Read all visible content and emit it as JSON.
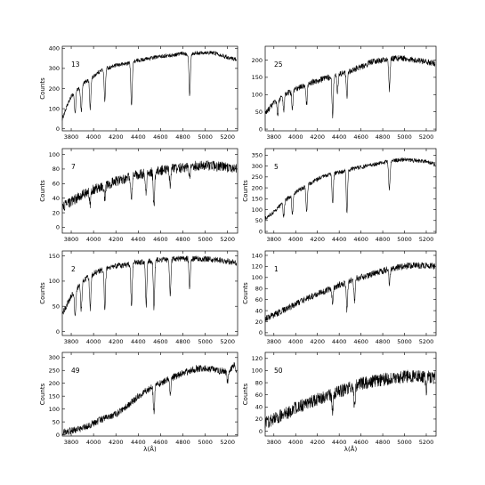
{
  "figure": {
    "colors": {
      "line": "#000000",
      "axes": "#000000",
      "background": "#ffffff"
    }
  },
  "chart_data": [
    {
      "type": "line",
      "panel_label": "13",
      "ylabel": "Counts",
      "xlabel": "",
      "xlim": [
        3720,
        5290
      ],
      "ylim": [
        -10,
        410
      ],
      "xticks": [
        3800,
        4000,
        4200,
        4400,
        4600,
        4800,
        5000,
        5200
      ],
      "yticks": [
        0,
        100,
        200,
        300,
        400
      ],
      "series": [
        {
          "x": [
            3720,
            3760,
            3800,
            3840,
            3880,
            3920,
            3970,
            4000,
            4040,
            4100,
            4150,
            4200,
            4300,
            4340,
            4400,
            4500,
            4600,
            4700,
            4800,
            4860,
            4900,
            5000,
            5100,
            5200,
            5280
          ],
          "y": [
            50,
            110,
            160,
            190,
            200,
            230,
            250,
            260,
            280,
            300,
            305,
            315,
            325,
            330,
            340,
            350,
            360,
            365,
            375,
            370,
            375,
            380,
            375,
            355,
            345
          ],
          "absorption": [
            {
              "x": 3835,
              "depth": 110
            },
            {
              "x": 3890,
              "depth": 120
            },
            {
              "x": 3970,
              "depth": 150
            },
            {
              "x": 4101,
              "depth": 160
            },
            {
              "x": 4340,
              "depth": 220
            },
            {
              "x": 4861,
              "depth": 200
            }
          ],
          "noise": 10
        }
      ]
    },
    {
      "type": "line",
      "panel_label": "25",
      "ylabel": "",
      "xlabel": "",
      "xlim": [
        3720,
        5290
      ],
      "ylim": [
        -5,
        240
      ],
      "xticks": [
        3800,
        4000,
        4200,
        4400,
        4600,
        4800,
        5000,
        5200
      ],
      "yticks": [
        0,
        50,
        100,
        150,
        200
      ],
      "series": [
        {
          "x": [
            3720,
            3800,
            3900,
            4000,
            4100,
            4200,
            4300,
            4400,
            4500,
            4600,
            4700,
            4800,
            4900,
            5000,
            5100,
            5200,
            5280
          ],
          "y": [
            45,
            75,
            100,
            115,
            130,
            140,
            150,
            158,
            168,
            180,
            195,
            200,
            205,
            205,
            200,
            195,
            190
          ],
          "absorption": [
            {
              "x": 3835,
              "depth": 40
            },
            {
              "x": 3890,
              "depth": 45
            },
            {
              "x": 3970,
              "depth": 50
            },
            {
              "x": 4101,
              "depth": 60
            },
            {
              "x": 4340,
              "depth": 115
            },
            {
              "x": 4384,
              "depth": 50
            },
            {
              "x": 4471,
              "depth": 70
            },
            {
              "x": 4861,
              "depth": 90
            }
          ],
          "noise": 9
        }
      ]
    },
    {
      "type": "line",
      "panel_label": "7",
      "ylabel": "Counts",
      "xlabel": "",
      "xlim": [
        3720,
        5290
      ],
      "ylim": [
        -8,
        108
      ],
      "xticks": [
        3800,
        4000,
        4200,
        4400,
        4600,
        4800,
        5000,
        5200
      ],
      "yticks": [
        0,
        20,
        40,
        60,
        80,
        100
      ],
      "series": [
        {
          "x": [
            3720,
            3800,
            3900,
            4000,
            4100,
            4200,
            4300,
            4400,
            4500,
            4600,
            4700,
            4800,
            4900,
            5000,
            5100,
            5200,
            5280
          ],
          "y": [
            28,
            35,
            45,
            52,
            58,
            63,
            68,
            72,
            75,
            78,
            80,
            82,
            84,
            85,
            84,
            82,
            80
          ],
          "absorption": [
            {
              "x": 3970,
              "depth": 20
            },
            {
              "x": 4101,
              "depth": 20
            },
            {
              "x": 4340,
              "depth": 28
            },
            {
              "x": 4471,
              "depth": 25
            },
            {
              "x": 4541,
              "depth": 50
            },
            {
              "x": 4686,
              "depth": 20
            },
            {
              "x": 4861,
              "depth": 18
            }
          ],
          "noise": 7
        }
      ]
    },
    {
      "type": "line",
      "panel_label": "5",
      "ylabel": "Counts",
      "xlabel": "",
      "xlim": [
        3720,
        5290
      ],
      "ylim": [
        -8,
        380
      ],
      "xticks": [
        3800,
        4000,
        4200,
        4400,
        4600,
        4800,
        5000,
        5200
      ],
      "yticks": [
        0,
        50,
        100,
        150,
        200,
        250,
        300,
        350
      ],
      "series": [
        {
          "x": [
            3720,
            3800,
            3900,
            4000,
            4100,
            4200,
            4300,
            4400,
            4500,
            4600,
            4700,
            4800,
            4900,
            5000,
            5100,
            5200,
            5280
          ],
          "y": [
            60,
            90,
            140,
            180,
            210,
            240,
            260,
            270,
            285,
            295,
            305,
            315,
            325,
            330,
            325,
            320,
            310
          ],
          "absorption": [
            {
              "x": 3890,
              "depth": 70
            },
            {
              "x": 3970,
              "depth": 90
            },
            {
              "x": 4101,
              "depth": 120
            },
            {
              "x": 4340,
              "depth": 140
            },
            {
              "x": 4471,
              "depth": 200
            },
            {
              "x": 4861,
              "depth": 130
            }
          ],
          "noise": 10
        }
      ]
    },
    {
      "type": "line",
      "panel_label": "2",
      "ylabel": "Counts",
      "xlabel": "",
      "xlim": [
        3720,
        5290
      ],
      "ylim": [
        -8,
        160
      ],
      "xticks": [
        3800,
        4000,
        4200,
        4400,
        4600,
        4800,
        5000,
        5200
      ],
      "yticks": [
        0,
        50,
        100,
        150
      ],
      "series": [
        {
          "x": [
            3720,
            3800,
            3900,
            4000,
            4100,
            4200,
            4300,
            4400,
            4500,
            4600,
            4700,
            4800,
            4900,
            5000,
            5100,
            5200,
            5280
          ],
          "y": [
            35,
            70,
            100,
            115,
            125,
            130,
            133,
            137,
            140,
            142,
            143,
            145,
            145,
            144,
            142,
            140,
            135
          ],
          "absorption": [
            {
              "x": 3835,
              "depth": 50
            },
            {
              "x": 3890,
              "depth": 55
            },
            {
              "x": 3970,
              "depth": 65
            },
            {
              "x": 4101,
              "depth": 80
            },
            {
              "x": 4340,
              "depth": 85
            },
            {
              "x": 4471,
              "depth": 90
            },
            {
              "x": 4541,
              "depth": 95
            },
            {
              "x": 4686,
              "depth": 70
            },
            {
              "x": 4861,
              "depth": 60
            }
          ],
          "noise": 6
        }
      ]
    },
    {
      "type": "line",
      "panel_label": "1",
      "ylabel": "Counts",
      "xlabel": "",
      "xlim": [
        3720,
        5290
      ],
      "ylim": [
        -5,
        148
      ],
      "xticks": [
        3800,
        4000,
        4200,
        4400,
        4600,
        4800,
        5000,
        5200
      ],
      "yticks": [
        0,
        20,
        40,
        60,
        80,
        100,
        120,
        140
      ],
      "series": [
        {
          "x": [
            3720,
            3800,
            3900,
            4000,
            4100,
            4200,
            4300,
            4400,
            4500,
            4600,
            4700,
            4800,
            4900,
            5000,
            5100,
            5200,
            5280
          ],
          "y": [
            25,
            32,
            42,
            52,
            62,
            70,
            78,
            86,
            94,
            100,
            106,
            112,
            117,
            120,
            122,
            122,
            120
          ],
          "absorption": [
            {
              "x": 4340,
              "depth": 30
            },
            {
              "x": 4471,
              "depth": 50
            },
            {
              "x": 4541,
              "depth": 40
            },
            {
              "x": 4861,
              "depth": 25
            }
          ],
          "noise": 6
        }
      ]
    },
    {
      "type": "line",
      "panel_label": "49",
      "ylabel": "Counts",
      "xlabel": "λ(Å)",
      "xlim": [
        3720,
        5290
      ],
      "ylim": [
        -5,
        320
      ],
      "xticks": [
        3800,
        4000,
        4200,
        4400,
        4600,
        4800,
        5000,
        5200
      ],
      "yticks": [
        0,
        50,
        100,
        150,
        200,
        250,
        300
      ],
      "series": [
        {
          "x": [
            3720,
            3800,
            3900,
            4000,
            4100,
            4200,
            4300,
            4400,
            4500,
            4600,
            4700,
            4800,
            4900,
            5000,
            5100,
            5200,
            5260,
            5280
          ],
          "y": [
            10,
            15,
            25,
            45,
            65,
            80,
            110,
            150,
            180,
            200,
            220,
            240,
            255,
            260,
            250,
            245,
            270,
            250
          ],
          "absorption": [
            {
              "x": 4541,
              "depth": 100
            },
            {
              "x": 4686,
              "depth": 60
            },
            {
              "x": 5200,
              "depth": 40
            }
          ],
          "noise": 14
        }
      ]
    },
    {
      "type": "line",
      "panel_label": "50",
      "ylabel": "Counts",
      "xlabel": "λ(Å)",
      "xlim": [
        3720,
        5290
      ],
      "ylim": [
        -8,
        130
      ],
      "xticks": [
        3800,
        4000,
        4200,
        4400,
        4600,
        4800,
        5000,
        5200
      ],
      "yticks": [
        0,
        20,
        40,
        60,
        80,
        100,
        120
      ],
      "series": [
        {
          "x": [
            3720,
            3800,
            3900,
            4000,
            4100,
            4200,
            4300,
            4400,
            4500,
            4600,
            4700,
            4800,
            4900,
            5000,
            5100,
            5200,
            5280
          ],
          "y": [
            15,
            20,
            28,
            38,
            45,
            52,
            58,
            65,
            72,
            78,
            82,
            85,
            88,
            90,
            92,
            90,
            88
          ],
          "absorption": [
            {
              "x": 4340,
              "depth": 25
            },
            {
              "x": 4541,
              "depth": 35
            },
            {
              "x": 5200,
              "depth": 25
            }
          ],
          "noise": 11
        }
      ]
    }
  ]
}
